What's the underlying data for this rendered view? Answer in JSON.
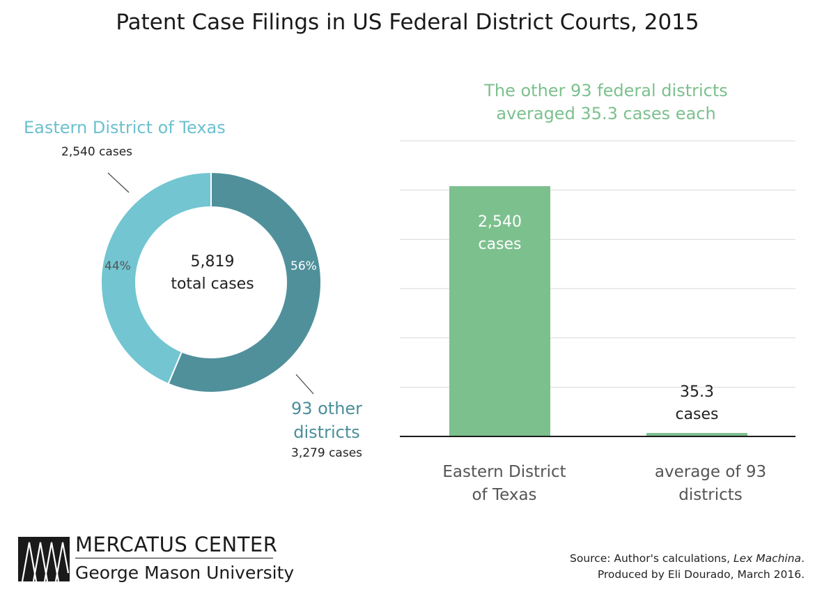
{
  "title": "Patent Case Filings in US Federal District Courts, 2015",
  "colors": {
    "donut_etx": "#72c5d1",
    "donut_other": "#50909b",
    "bar": "#7cc08e",
    "grid": "#d9d9d9",
    "axis": "#1a1a1a"
  },
  "chart_data": [
    {
      "type": "pie",
      "variant": "donut",
      "center_label": [
        "5,819",
        "total cases"
      ],
      "slices": [
        {
          "name": "Eastern District of Texas",
          "value": 2540,
          "percent": 44,
          "percent_label": "44%",
          "name_lines": [
            "Eastern District of Texas"
          ],
          "value_label": "2,540 cases"
        },
        {
          "name": "93 other districts",
          "value": 3279,
          "percent": 56,
          "percent_label": "56%",
          "name_lines": [
            "93 other",
            "districts"
          ],
          "value_label": "3,279 cases"
        }
      ]
    },
    {
      "type": "bar",
      "annotation": [
        "The other 93 federal districts",
        "averaged 35.3 cases each"
      ],
      "categories": [
        [
          "Eastern District",
          "of Texas"
        ],
        [
          "average of 93",
          "districts"
        ]
      ],
      "values": [
        2540,
        35.3
      ],
      "value_labels": [
        [
          "2,540",
          "cases"
        ],
        [
          "35.3",
          "cases"
        ]
      ],
      "ylim": [
        0,
        3000
      ],
      "grid": true
    }
  ],
  "logo": {
    "name": "MERCATUS CENTER",
    "subtitle": "George Mason University"
  },
  "source": {
    "prefix": "Source: Author's calculations, ",
    "italic": "Lex Machina",
    "suffix": ".",
    "line2": "Produced by Eli Dourado, March 2016."
  }
}
